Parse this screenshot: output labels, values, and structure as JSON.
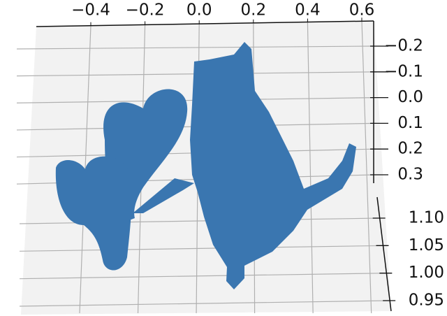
{
  "chart_data": {
    "type": "scatter3d",
    "color": "#3a76b0",
    "xticks": [
      {
        "value": -0.4,
        "label": "−0.4"
      },
      {
        "value": -0.2,
        "label": "−0.2"
      },
      {
        "value": 0.0,
        "label": "0.0"
      },
      {
        "value": 0.2,
        "label": "0.2"
      },
      {
        "value": 0.4,
        "label": "0.4"
      },
      {
        "value": 0.6,
        "label": "0.6"
      }
    ],
    "yticks": [
      {
        "value": -0.2,
        "label": "−0.2"
      },
      {
        "value": -0.1,
        "label": "−0.1"
      },
      {
        "value": 0.0,
        "label": "0.0"
      },
      0.1,
      0.2,
      0.3
    ],
    "zticks": [
      {
        "value": 1.1,
        "label": "1.10"
      },
      1.05,
      {
        "value": 1.0,
        "label": "1.00"
      },
      0.95
    ],
    "grid": true
  }
}
